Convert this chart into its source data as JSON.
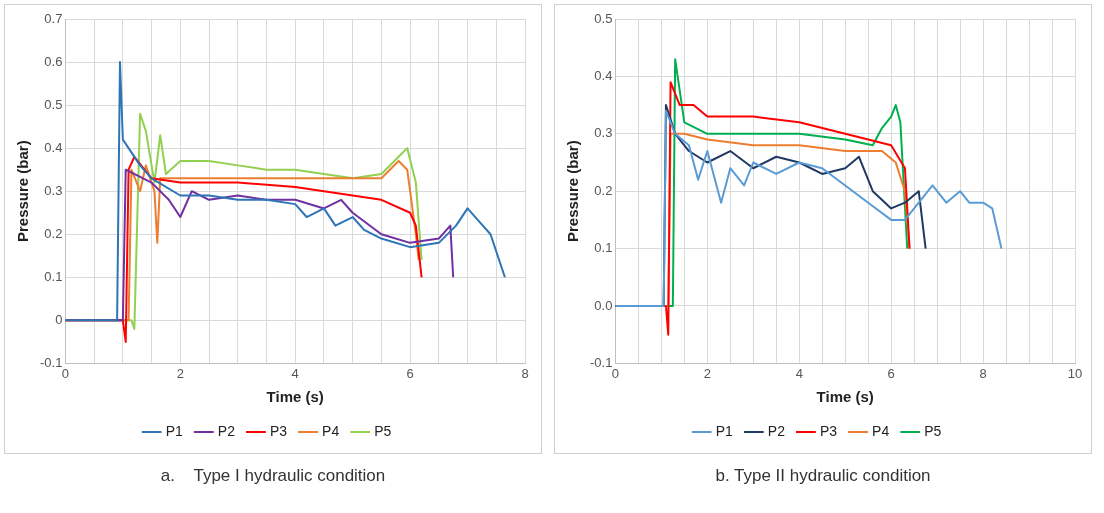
{
  "chart_data": [
    {
      "type": "line",
      "xlabel": "Time (s)",
      "ylabel": "Pressure (bar)",
      "legend": "bottom",
      "grid": true,
      "line_style": "solid",
      "xlim": [
        0,
        8
      ],
      "xticks": [
        0,
        {
          "value": 0.5,
          "label": null
        },
        {
          "value": 1,
          "label": null
        },
        {
          "value": 1.5,
          "label": null
        },
        2,
        {
          "value": 2.5,
          "label": null
        },
        {
          "value": 3,
          "label": null
        },
        {
          "value": 3.5,
          "label": null
        },
        4,
        {
          "value": 4.5,
          "label": null
        },
        {
          "value": 5,
          "label": null
        },
        {
          "value": 5.5,
          "label": null
        },
        6,
        {
          "value": 6.5,
          "label": null
        },
        {
          "value": 7,
          "label": null
        },
        {
          "value": 7.5,
          "label": null
        },
        8
      ],
      "ylim": [
        -0.1,
        0.7
      ],
      "yticks": [
        -0.1,
        0,
        0.1,
        0.2,
        0.3,
        0.4,
        0.5,
        0.6,
        0.7
      ],
      "annotations": [
        "a.    Type I hydraulic condition"
      ],
      "series": [
        {
          "name": "P1",
          "color": "#2e75b6",
          "x": [
            0,
            0.9,
            0.95,
            1.0,
            1.1,
            1.3,
            1.5,
            2,
            2.5,
            3,
            3.5,
            4,
            4.2,
            4.5,
            4.7,
            5,
            5.2,
            5.5,
            6,
            6.5,
            6.8,
            7.0,
            7.2,
            7.4,
            7.65
          ],
          "values": [
            0,
            0,
            0.6,
            0.42,
            0.4,
            0.36,
            0.33,
            0.29,
            0.29,
            0.28,
            0.28,
            0.27,
            0.24,
            0.26,
            0.22,
            0.24,
            0.21,
            0.19,
            0.17,
            0.18,
            0.22,
            0.26,
            0.23,
            0.2,
            0.1
          ]
        },
        {
          "name": "P2",
          "color": "#7030a0",
          "x": [
            0,
            1.0,
            1.05,
            1.5,
            1.8,
            2,
            2.2,
            2.5,
            3,
            3.5,
            4,
            4.5,
            4.8,
            5,
            5.5,
            6,
            6.5,
            6.7,
            6.75
          ],
          "values": [
            0,
            0,
            0.35,
            0.32,
            0.28,
            0.24,
            0.3,
            0.28,
            0.29,
            0.28,
            0.28,
            0.26,
            0.28,
            0.25,
            0.2,
            0.18,
            0.19,
            0.22,
            0.1
          ]
        },
        {
          "name": "P3",
          "color": "#ff0000",
          "x": [
            0,
            1.0,
            1.05,
            1.1,
            1.2,
            1.5,
            2,
            3,
            4,
            4.5,
            5,
            5.5,
            6,
            6.1,
            6.2
          ],
          "values": [
            0,
            0,
            -0.05,
            0.35,
            0.38,
            0.33,
            0.32,
            0.32,
            0.31,
            0.3,
            0.29,
            0.28,
            0.25,
            0.22,
            0.1
          ]
        },
        {
          "name": "P4",
          "color": "#ed7d31",
          "x": [
            0,
            1.1,
            1.15,
            1.3,
            1.4,
            1.55,
            1.6,
            1.65,
            2,
            3,
            4,
            5,
            5.5,
            5.8,
            5.95,
            6.1,
            6.15
          ],
          "values": [
            0,
            0,
            0.35,
            0.3,
            0.36,
            0.3,
            0.18,
            0.33,
            0.33,
            0.33,
            0.33,
            0.33,
            0.33,
            0.37,
            0.35,
            0.2,
            0.14
          ]
        },
        {
          "name": "P5",
          "color": "#92d050",
          "x": [
            0,
            1.15,
            1.2,
            1.3,
            1.4,
            1.55,
            1.65,
            1.75,
            2,
            2.5,
            3,
            3.5,
            4,
            4.5,
            5,
            5.5,
            5.8,
            5.95,
            6.1,
            6.2
          ],
          "values": [
            0,
            0,
            -0.02,
            0.48,
            0.44,
            0.32,
            0.43,
            0.34,
            0.37,
            0.37,
            0.36,
            0.35,
            0.35,
            0.34,
            0.33,
            0.34,
            0.38,
            0.4,
            0.32,
            0.14
          ]
        }
      ]
    },
    {
      "type": "line",
      "xlabel": "Time (s)",
      "ylabel": "Pressure (bar)",
      "legend": "bottom",
      "grid": true,
      "line_style": "solid",
      "xlim": [
        0,
        10
      ],
      "xticks": [
        0,
        {
          "value": 0.5,
          "label": null
        },
        {
          "value": 1,
          "label": null
        },
        {
          "value": 1.5,
          "label": null
        },
        2,
        {
          "value": 2.5,
          "label": null
        },
        {
          "value": 3,
          "label": null
        },
        {
          "value": 3.5,
          "label": null
        },
        4,
        {
          "value": 4.5,
          "label": null
        },
        {
          "value": 5,
          "label": null
        },
        {
          "value": 5.5,
          "label": null
        },
        6,
        {
          "value": 6.5,
          "label": null
        },
        {
          "value": 7,
          "label": null
        },
        {
          "value": 7.5,
          "label": null
        },
        8,
        {
          "value": 8.5,
          "label": null
        },
        {
          "value": 9,
          "label": null
        },
        {
          "value": 9.5,
          "label": null
        },
        10
      ],
      "ylim": [
        -0.1,
        0.5
      ],
      "yticks": [
        -0.1,
        {
          "value": 0,
          "label": "0.0"
        },
        0.1,
        0.2,
        0.3,
        0.4,
        0.5
      ],
      "annotations": [
        "b. Type II hydraulic condition"
      ],
      "series": [
        {
          "name": "P1",
          "color": "#5b9bd5",
          "x": [
            0,
            1.05,
            1.1,
            1.3,
            1.6,
            1.8,
            2,
            2.3,
            2.5,
            2.8,
            3,
            3.5,
            4,
            4.5,
            5,
            5.5,
            6,
            6.3,
            6.6,
            6.9,
            7.2,
            7.5,
            7.7,
            8,
            8.2,
            8.4
          ],
          "values": [
            0,
            0,
            0.34,
            0.3,
            0.28,
            0.22,
            0.27,
            0.18,
            0.24,
            0.21,
            0.25,
            0.23,
            0.25,
            0.24,
            0.21,
            0.18,
            0.15,
            0.15,
            0.18,
            0.21,
            0.18,
            0.2,
            0.18,
            0.18,
            0.17,
            0.1
          ]
        },
        {
          "name": "P2",
          "color": "#1f3864",
          "x": [
            0,
            1.05,
            1.1,
            1.3,
            1.6,
            2,
            2.5,
            3,
            3.5,
            4,
            4.5,
            5,
            5.3,
            5.6,
            6,
            6.3,
            6.6,
            6.75
          ],
          "values": [
            0,
            0,
            0.35,
            0.3,
            0.27,
            0.25,
            0.27,
            0.24,
            0.26,
            0.25,
            0.23,
            0.24,
            0.26,
            0.2,
            0.17,
            0.18,
            0.2,
            0.1
          ]
        },
        {
          "name": "P3",
          "color": "#ff0000",
          "x": [
            0,
            1.1,
            1.15,
            1.2,
            1.4,
            1.7,
            2,
            3,
            4,
            4.5,
            5,
            5.5,
            6,
            6.3,
            6.4
          ],
          "values": [
            0,
            0,
            -0.05,
            0.39,
            0.35,
            0.35,
            0.33,
            0.33,
            0.32,
            0.31,
            0.3,
            0.29,
            0.28,
            0.24,
            0.1
          ]
        },
        {
          "name": "P4",
          "color": "#ed7d31",
          "x": [
            0,
            1.15,
            1.2,
            1.5,
            2,
            3,
            4,
            5,
            5.8,
            6.1,
            6.3,
            6.4
          ],
          "values": [
            0,
            0,
            0.3,
            0.3,
            0.29,
            0.28,
            0.28,
            0.27,
            0.27,
            0.25,
            0.2,
            0.1
          ]
        },
        {
          "name": "P5",
          "color": "#00b050",
          "x": [
            0,
            1.25,
            1.3,
            1.5,
            2,
            3,
            4,
            5,
            5.6,
            5.8,
            6,
            6.1,
            6.2,
            6.35
          ],
          "values": [
            0,
            0,
            0.43,
            0.32,
            0.3,
            0.3,
            0.3,
            0.29,
            0.28,
            0.31,
            0.33,
            0.35,
            0.32,
            0.1
          ]
        }
      ]
    }
  ]
}
